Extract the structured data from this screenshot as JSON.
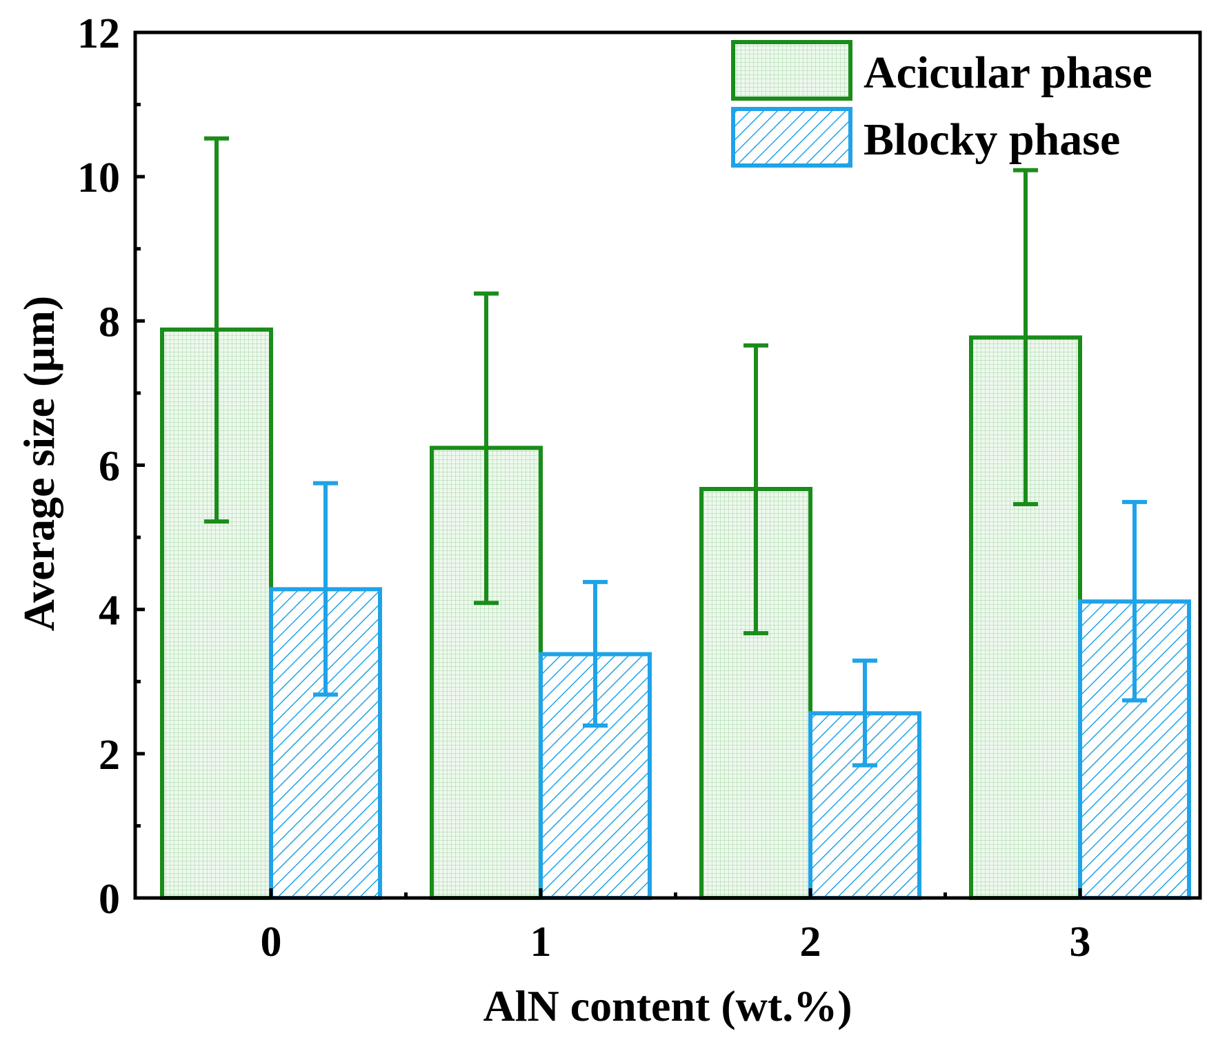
{
  "chart_data": {
    "type": "bar",
    "categories": [
      "0",
      "1",
      "2",
      "3"
    ],
    "series": [
      {
        "name": "Acicular phase",
        "values": [
          7.88,
          6.24,
          5.67,
          7.77
        ],
        "error_low": [
          5.22,
          4.09,
          3.67,
          5.46
        ],
        "error_high": [
          10.53,
          8.38,
          7.66,
          10.09
        ],
        "color": "#1a8c1a",
        "fill": "#e6f4e6",
        "pattern": "grid"
      },
      {
        "name": "Blocky phase",
        "values": [
          4.28,
          3.38,
          2.56,
          4.11
        ],
        "error_low": [
          2.82,
          2.39,
          1.84,
          2.74
        ],
        "error_high": [
          5.75,
          4.38,
          3.29,
          5.49
        ],
        "color": "#1fa3e8",
        "fill": "#ffffff",
        "pattern": "diagonal-hatch"
      }
    ],
    "xlabel": "AlN content (wt.%)",
    "ylabel": "Average size (μm)",
    "ylim": [
      0,
      12
    ],
    "yticks": [
      "0",
      "2",
      "4",
      "6",
      "8",
      "10",
      "12"
    ],
    "legend_position": "top-right",
    "grid": false
  }
}
